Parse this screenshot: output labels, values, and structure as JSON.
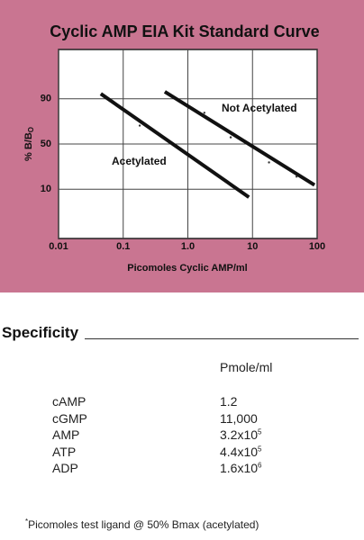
{
  "chart_data": {
    "type": "line",
    "title": "Cyclic AMP EIA Kit Standard Curve",
    "x_label": "Picomoles Cyclic AMP/ml",
    "y_label": "% B/B",
    "y_label_sub": "O",
    "x_scale": "log",
    "y_scale": "logit",
    "xlim": [
      0.01,
      100
    ],
    "xticks": [
      0.01,
      0.1,
      {
        "value": 1,
        "label": "1.0"
      },
      10,
      100
    ],
    "ylim": [
      1,
      99
    ],
    "yticks": [
      90,
      50,
      10
    ],
    "grid": true,
    "series": [
      {
        "name": "Acetylated",
        "color": "#111111",
        "x": [
          0.045,
          8.8
        ],
        "values": [
          92,
          7
        ]
      },
      {
        "name": "Not Acetylated",
        "color": "#111111",
        "x": [
          0.44,
          91
        ],
        "values": [
          92.7,
          12
        ]
      }
    ],
    "points": [
      {
        "x": [
          0.18
        ],
        "values": [
          71
        ]
      },
      {
        "x": [
          1.8,
          4.6,
          18,
          48
        ],
        "values": [
          82,
          58,
          29,
          17
        ]
      }
    ]
  },
  "specificity": {
    "heading": "Specificity",
    "column": "Pmole/ml",
    "rows": [
      {
        "name": "cAMP",
        "base": "1.2"
      },
      {
        "name": "cGMP",
        "base": "11,000"
      },
      {
        "name": "AMP",
        "base": "3.2x10",
        "exp": "5"
      },
      {
        "name": "ATP",
        "base": "4.4x10",
        "exp": "5"
      },
      {
        "name": "ADP",
        "base": "1.6x10",
        "exp": "6"
      }
    ],
    "footnote_mark": "*",
    "footnote": "Picomoles test ligand @ 50% Bmax (acetylated)"
  }
}
